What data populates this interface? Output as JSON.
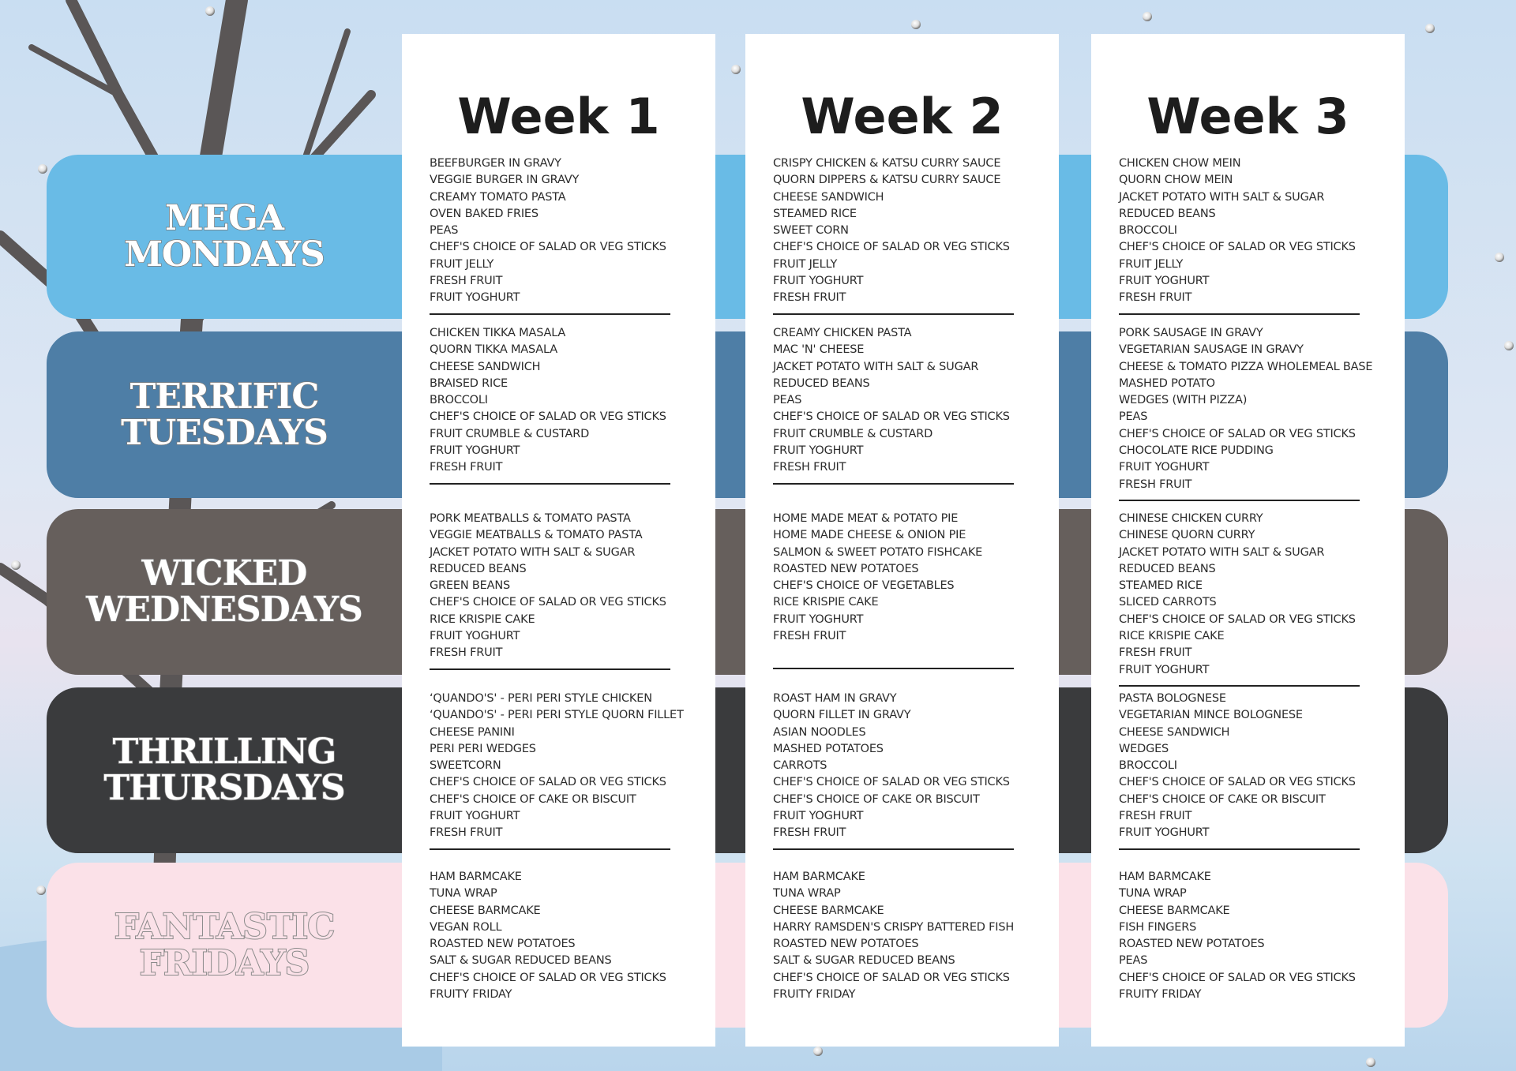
{
  "colors": {
    "monday": "#69bbe6",
    "tuesday": "#4e7ea6",
    "wednesday": "#665f5c",
    "thursday": "#3a3b3d",
    "friday": "#fbe1e8"
  },
  "days": [
    {
      "label_line1": "MEGA",
      "label_line2": "MONDAYS"
    },
    {
      "label_line1": "TERRIFIC",
      "label_line2": "TUESDAYS"
    },
    {
      "label_line1": "WICKED",
      "label_line2": "WEDNESDAYS"
    },
    {
      "label_line1": "THRILLING",
      "label_line2": "THURSDAYS"
    },
    {
      "label_line1": "FANTASTIC",
      "label_line2": "FRIDAYS"
    }
  ],
  "weeks": [
    {
      "title": "Week 1",
      "menus": [
        [
          "BEEFBURGER IN GRAVY",
          "VEGGIE BURGER IN GRAVY",
          "CREAMY TOMATO PASTA",
          "OVEN BAKED FRIES",
          "PEAS",
          "CHEF'S CHOICE OF SALAD OR VEG STICKS",
          "FRUIT JELLY",
          "FRESH FRUIT",
          "FRUIT YOGHURT"
        ],
        [
          "CHICKEN TIKKA MASALA",
          "QUORN TIKKA MASALA",
          "CHEESE SANDWICH",
          "BRAISED RICE",
          "BROCCOLI",
          "CHEF'S CHOICE OF SALAD OR VEG STICKS",
          "FRUIT CRUMBLE & CUSTARD",
          "FRUIT YOGHURT",
          "FRESH FRUIT"
        ],
        [
          "PORK MEATBALLS & TOMATO PASTA",
          "VEGGIE MEATBALLS & TOMATO PASTA",
          "JACKET POTATO WITH SALT & SUGAR",
          "REDUCED BEANS",
          "GREEN BEANS",
          "CHEF'S CHOICE OF SALAD OR VEG STICKS",
          "RICE KRISPIE CAKE",
          "FRUIT YOGHURT",
          "FRESH FRUIT"
        ],
        [
          "‘QUANDO'S' - PERI PERI STYLE CHICKEN",
          "‘QUANDO'S' - PERI PERI STYLE QUORN FILLET",
          "CHEESE PANINI",
          "PERI PERI WEDGES",
          "SWEETCORN",
          "CHEF'S CHOICE OF SALAD OR VEG STICKS",
          "CHEF'S CHOICE OF CAKE OR BISCUIT",
          "FRUIT YOGHURT",
          "FRESH FRUIT"
        ],
        [
          "HAM BARMCAKE",
          "TUNA WRAP",
          "CHEESE BARMCAKE",
          "VEGAN ROLL",
          "ROASTED NEW POTATOES",
          "SALT & SUGAR REDUCED BEANS",
          "CHEF'S CHOICE OF SALAD OR VEG STICKS",
          "FRUITY FRIDAY"
        ]
      ]
    },
    {
      "title": "Week 2",
      "menus": [
        [
          "CRISPY CHICKEN & KATSU CURRY SAUCE",
          "QUORN DIPPERS & KATSU CURRY SAUCE",
          "CHEESE SANDWICH",
          "STEAMED RICE",
          "SWEET CORN",
          "CHEF'S CHOICE OF SALAD OR VEG STICKS",
          "FRUIT JELLY",
          "FRUIT YOGHURT",
          "FRESH FRUIT"
        ],
        [
          "CREAMY CHICKEN PASTA",
          "MAC 'N' CHEESE",
          "JACKET POTATO WITH SALT & SUGAR",
          "REDUCED BEANS",
          "PEAS",
          "CHEF'S CHOICE OF SALAD OR VEG STICKS",
          "FRUIT CRUMBLE & CUSTARD",
          "FRUIT YOGHURT",
          "FRESH FRUIT"
        ],
        [
          "HOME MADE MEAT & POTATO PIE",
          "HOME MADE CHEESE & ONION PIE",
          "SALMON & SWEET POTATO FISHCAKE",
          "ROASTED NEW POTATOES",
          "CHEF'S CHOICE OF VEGETABLES",
          "RICE KRISPIE CAKE",
          "FRUIT YOGHURT",
          "FRESH FRUIT"
        ],
        [
          "ROAST HAM IN GRAVY",
          "QUORN FILLET IN GRAVY",
          "ASIAN NOODLES",
          "MASHED POTATOES",
          "CARROTS",
          "CHEF'S CHOICE OF SALAD OR VEG STICKS",
          "CHEF'S CHOICE OF CAKE OR BISCUIT",
          "FRUIT YOGHURT",
          "FRESH FRUIT"
        ],
        [
          "HAM BARMCAKE",
          "TUNA WRAP",
          "CHEESE BARMCAKE",
          "HARRY RAMSDEN'S CRISPY BATTERED FISH",
          "ROASTED NEW POTATOES",
          "SALT & SUGAR REDUCED BEANS",
          "CHEF'S CHOICE OF SALAD OR VEG STICKS",
          "FRUITY FRIDAY"
        ]
      ]
    },
    {
      "title": "Week 3",
      "menus": [
        [
          "CHICKEN CHOW MEIN",
          "QUORN CHOW MEIN",
          "JACKET POTATO WITH SALT & SUGAR",
          "REDUCED BEANS",
          "BROCCOLI",
          "CHEF'S CHOICE OF SALAD OR VEG STICKS",
          "FRUIT JELLY",
          "FRUIT YOGHURT",
          "FRESH FRUIT"
        ],
        [
          "PORK SAUSAGE IN GRAVY",
          "VEGETARIAN SAUSAGE IN GRAVY",
          "CHEESE & TOMATO PIZZA WHOLEMEAL BASE",
          "MASHED POTATO",
          "WEDGES (WITH PIZZA)",
          "PEAS",
          "CHEF'S CHOICE OF SALAD OR VEG STICKS",
          "CHOCOLATE RICE PUDDING",
          "FRUIT YOGHURT",
          "FRESH FRUIT"
        ],
        [
          "CHINESE CHICKEN CURRY",
          "CHINESE QUORN CURRY",
          "JACKET POTATO WITH SALT & SUGAR",
          "REDUCED BEANS",
          "STEAMED RICE",
          "SLICED CARROTS",
          "CHEF'S CHOICE OF SALAD OR VEG STICKS",
          "RICE KRISPIE CAKE",
          "FRESH FRUIT",
          "FRUIT YOGHURT"
        ],
        [
          "PASTA BOLOGNESE",
          "VEGETARIAN MINCE BOLOGNESE",
          "CHEESE SANDWICH",
          "WEDGES",
          "BROCCOLI",
          "CHEF'S CHOICE OF SALAD OR VEG STICKS",
          "CHEF'S CHOICE OF CAKE OR BISCUIT",
          "FRESH FRUIT",
          "FRUIT YOGHURT"
        ],
        [
          "HAM BARMCAKE",
          "TUNA WRAP",
          "CHEESE BARMCAKE",
          "FISH FINGERS",
          "ROASTED NEW POTATOES",
          "PEAS",
          "CHEF'S CHOICE OF SALAD OR VEG STICKS",
          "FRUITY FRIDAY"
        ]
      ]
    }
  ]
}
